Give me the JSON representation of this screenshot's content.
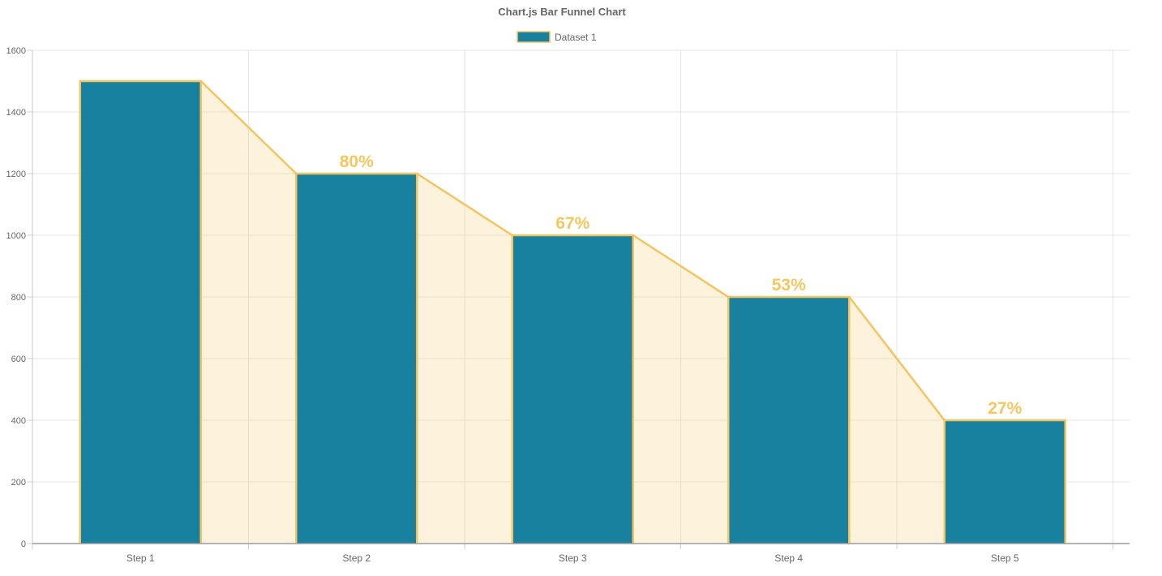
{
  "chart_data": {
    "type": "bar",
    "variant": "funnel",
    "title": "Chart.js Bar Funnel Chart",
    "legend_position": "top",
    "legend": [
      {
        "label": "Dataset 1"
      }
    ],
    "categories": [
      "Step 1",
      "Step 2",
      "Step 3",
      "Step 4",
      "Step 5"
    ],
    "series": [
      {
        "name": "Dataset 1",
        "values": [
          1500,
          1200,
          1000,
          800,
          400
        ]
      }
    ],
    "percent_labels": [
      "",
      "80%",
      "67%",
      "53%",
      "27%"
    ],
    "y_ticks": [
      0,
      200,
      400,
      600,
      800,
      1000,
      1200,
      1400,
      1600
    ],
    "ylim": [
      0,
      1600
    ],
    "grid": true,
    "colors": {
      "bar_fill": "#17819F",
      "bar_border": "#F5C45F",
      "connector_fill": "#F5C45F",
      "connector_opacity": "0.22",
      "percent_label": "#F6C75F",
      "axis_text": "#666666",
      "gridline": "#E6E6E6",
      "axis_line_left": "#C6C6C6",
      "axis_line_bottom": "#9C9C9C",
      "tick_mark": "#CFCFCF"
    }
  }
}
